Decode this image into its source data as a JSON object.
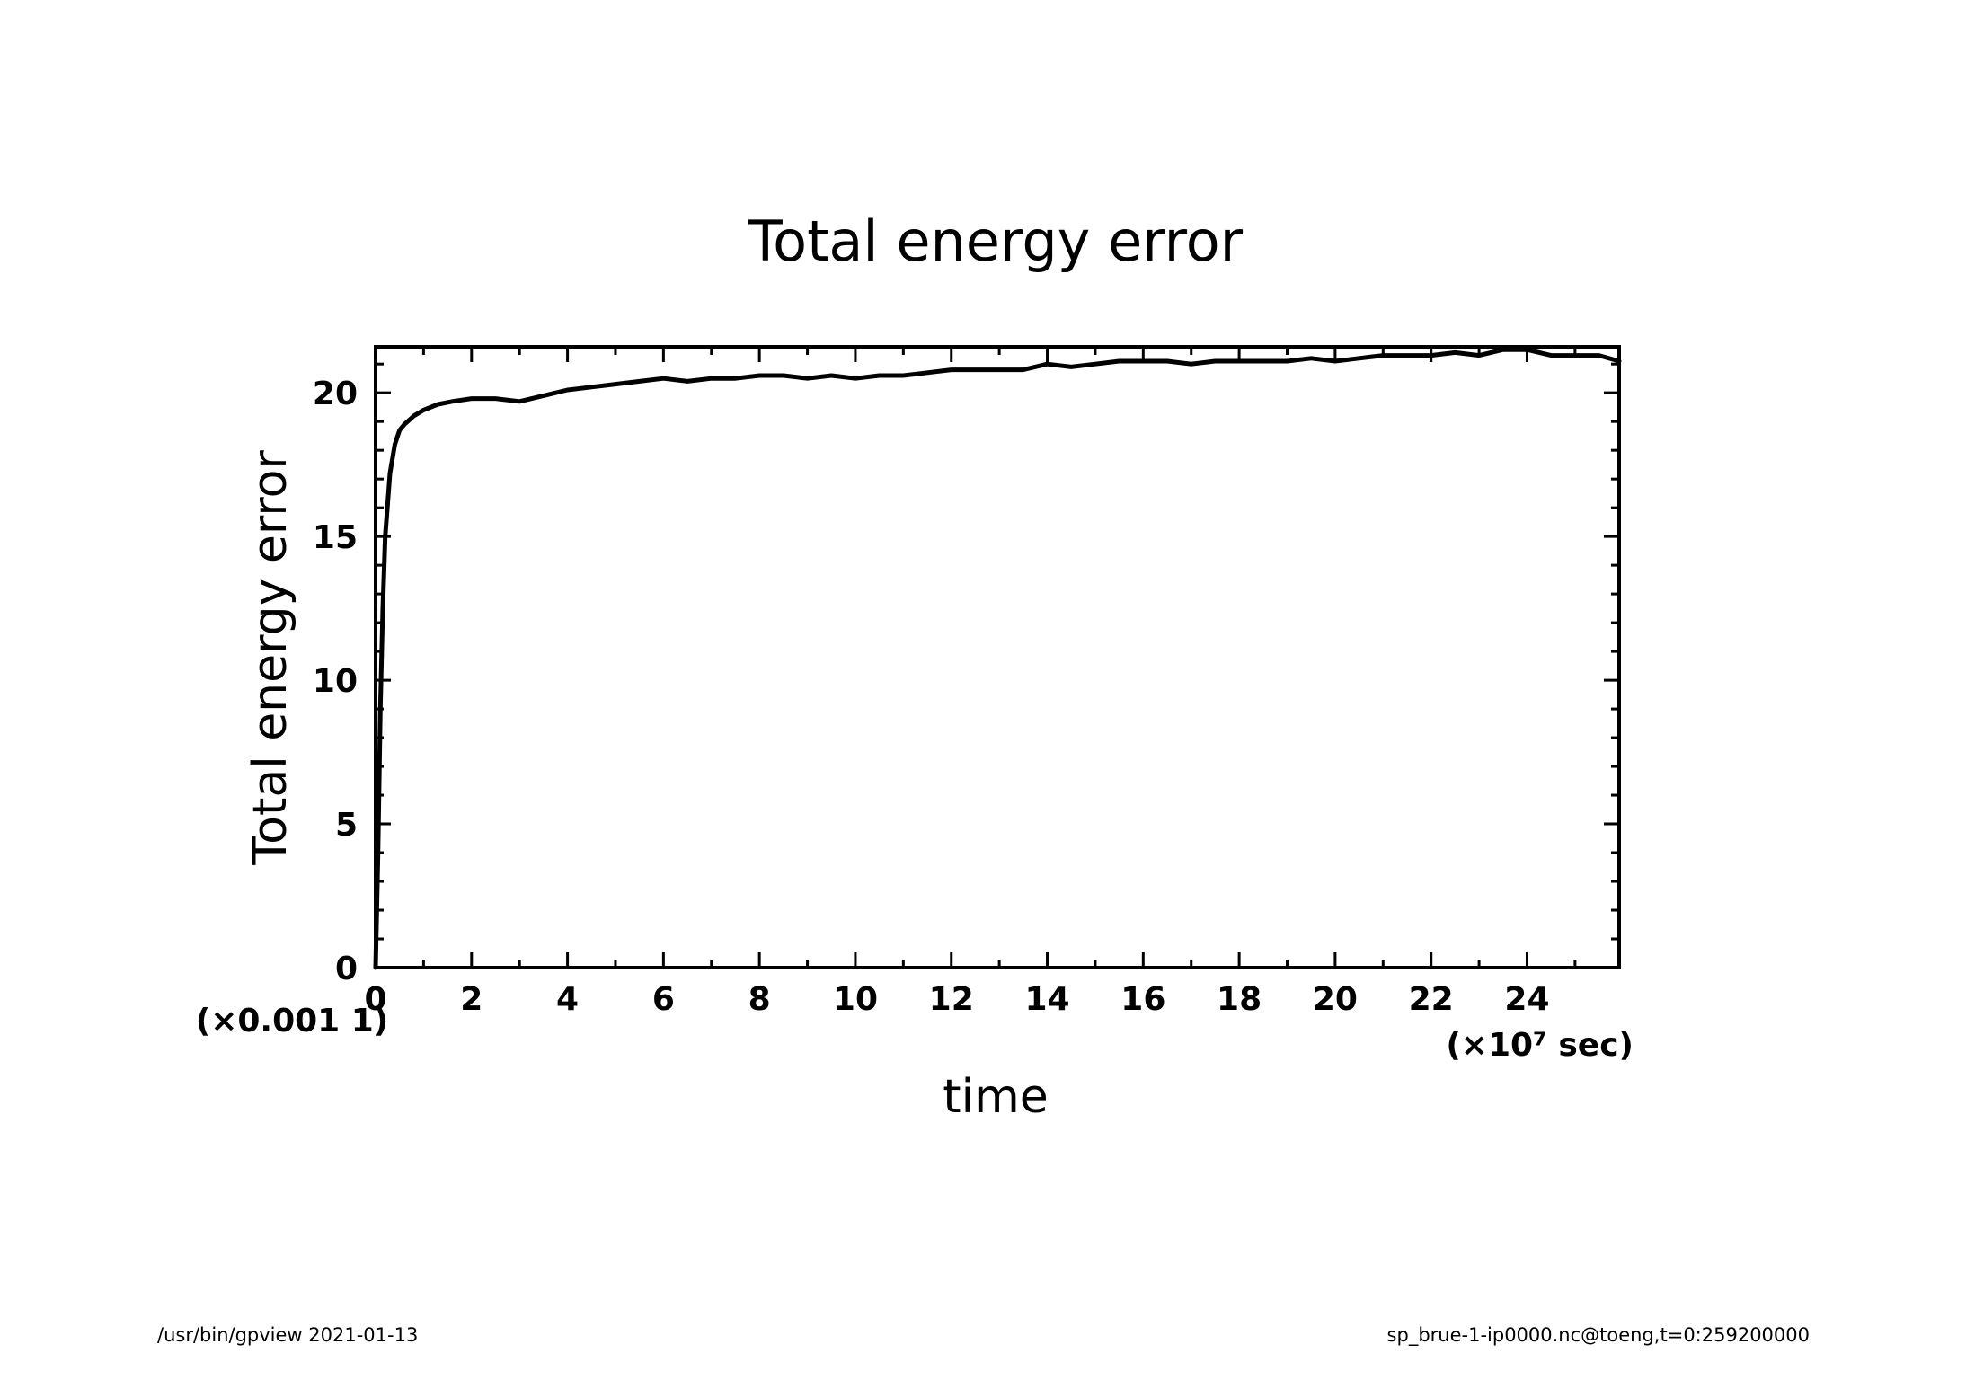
{
  "chart_data": {
    "type": "line",
    "title": "Total energy error",
    "xlabel": "time",
    "ylabel": "Total energy error",
    "x_unit_label": "(×10⁷ sec)",
    "y_unit_label": "(×0.001  1)",
    "xlim": [
      0,
      25.92
    ],
    "ylim": [
      0,
      21.6
    ],
    "x_ticks": [
      0,
      2,
      4,
      6,
      8,
      10,
      12,
      14,
      16,
      18,
      20,
      22,
      24
    ],
    "y_ticks": [
      0,
      5,
      10,
      15,
      20
    ],
    "x_minor_step": 1,
    "y_minor_step": 1,
    "grid": false,
    "legend": "none",
    "series": [
      {
        "x": [
          0,
          0.05,
          0.1,
          0.15,
          0.2,
          0.3,
          0.4,
          0.5,
          0.6,
          0.8,
          1.0,
          1.3,
          1.6,
          2.0,
          2.5,
          3.0,
          3.5,
          4.0,
          4.5,
          5.0,
          5.5,
          6.0,
          6.5,
          7.0,
          7.5,
          8.0,
          8.5,
          9.0,
          9.5,
          10.0,
          10.5,
          11.0,
          11.5,
          12.0,
          12.5,
          13.0,
          13.5,
          14.0,
          14.5,
          15.0,
          15.5,
          16.0,
          16.5,
          17.0,
          17.5,
          18.0,
          18.5,
          19.0,
          19.5,
          20.0,
          20.5,
          21.0,
          21.5,
          22.0,
          22.5,
          23.0,
          23.5,
          24.0,
          24.5,
          25.0,
          25.5,
          25.92
        ],
        "y": [
          0,
          4,
          9,
          12.5,
          15,
          17.2,
          18.2,
          18.7,
          18.9,
          19.2,
          19.4,
          19.6,
          19.7,
          19.8,
          19.8,
          19.7,
          19.9,
          20.1,
          20.2,
          20.3,
          20.4,
          20.5,
          20.4,
          20.5,
          20.5,
          20.6,
          20.6,
          20.5,
          20.6,
          20.5,
          20.6,
          20.6,
          20.7,
          20.8,
          20.8,
          20.8,
          20.8,
          21.0,
          20.9,
          21.0,
          21.1,
          21.1,
          21.1,
          21.0,
          21.1,
          21.1,
          21.1,
          21.1,
          21.2,
          21.1,
          21.2,
          21.3,
          21.3,
          21.3,
          21.4,
          21.3,
          21.5,
          21.5,
          21.3,
          21.3,
          21.3,
          21.1
        ]
      }
    ]
  },
  "footer": {
    "left": "/usr/bin/gpview   2021-01-13",
    "right": "sp_brue-1-ip0000.nc@toeng,t=0:259200000"
  }
}
